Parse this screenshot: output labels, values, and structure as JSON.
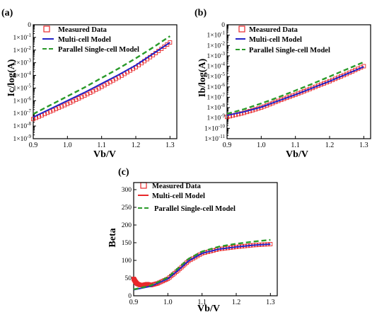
{
  "chart_data": [
    {
      "panel": "(a)",
      "type": "line",
      "xlabel": "Vb/V",
      "ylabel": "Ic/log(A)",
      "xlim": [
        0.9,
        1.32
      ],
      "ylim_log10": [
        -9,
        0
      ],
      "log_y": true,
      "xticks": [
        0.9,
        1.0,
        1.1,
        1.2,
        1.3
      ],
      "xtick_labels": [
        "0.9",
        "1.0",
        "1.1",
        "1.2",
        "1.3"
      ],
      "yticks_log10": [
        0,
        -1,
        -2,
        -3,
        -4,
        -5,
        -6,
        -7,
        -8,
        -9
      ],
      "ytick_labels": [
        {
          "base": "0",
          "exp": ""
        },
        {
          "base": "1×10",
          "exp": "-1"
        },
        {
          "base": "1×10",
          "exp": "-2"
        },
        {
          "base": "1×10",
          "exp": "-3"
        },
        {
          "base": "1×10",
          "exp": "-4"
        },
        {
          "base": "1×10",
          "exp": "-5"
        },
        {
          "base": "1×10",
          "exp": "-6"
        },
        {
          "base": "1×10",
          "exp": "-7"
        },
        {
          "base": "1×10",
          "exp": "-8"
        },
        {
          "base": "1×10",
          "exp": "-9"
        }
      ],
      "legend_position": "top-left",
      "series": [
        {
          "name": "Measured Data",
          "style": "square-marker",
          "color": "#e8282b",
          "x": [
            0.9,
            0.95,
            1.0,
            1.05,
            1.1,
            1.15,
            1.2,
            1.25,
            1.3
          ],
          "y_log10": [
            -7.45,
            -6.85,
            -6.25,
            -5.6,
            -4.9,
            -4.15,
            -3.35,
            -2.4,
            -1.4
          ]
        },
        {
          "name": "Multi-cell Model",
          "style": "solid",
          "color": "#2323c8",
          "x": [
            0.9,
            0.95,
            1.0,
            1.05,
            1.1,
            1.15,
            1.2,
            1.25,
            1.3
          ],
          "y_log10": [
            -7.3,
            -6.65,
            -6.0,
            -5.35,
            -4.65,
            -3.95,
            -3.2,
            -2.3,
            -1.4
          ]
        },
        {
          "name": "Parallel Single-cell Model",
          "style": "dashed",
          "color": "#2a9a2a",
          "x": [
            0.9,
            0.95,
            1.0,
            1.05,
            1.1,
            1.15,
            1.2,
            1.25,
            1.3
          ],
          "y_log10": [
            -7.05,
            -6.35,
            -5.65,
            -4.95,
            -4.2,
            -3.45,
            -2.65,
            -1.8,
            -0.9
          ]
        }
      ]
    },
    {
      "panel": "(b)",
      "type": "line",
      "xlabel": "Vb/V",
      "ylabel": "Ib/log(A)",
      "xlim": [
        0.9,
        1.32
      ],
      "ylim_log10": [
        -11,
        0
      ],
      "log_y": true,
      "xticks": [
        0.9,
        1.0,
        1.1,
        1.2,
        1.3
      ],
      "xtick_labels": [
        "0.9",
        "1.0",
        "1.1",
        "1.2",
        "1.3"
      ],
      "yticks_log10": [
        0,
        -1,
        -2,
        -3,
        -4,
        -5,
        -6,
        -7,
        -8,
        -9,
        -10,
        -11
      ],
      "ytick_labels": [
        {
          "base": "0",
          "exp": ""
        },
        {
          "base": "1×10",
          "exp": "-1"
        },
        {
          "base": "1×10",
          "exp": "-2"
        },
        {
          "base": "1×10",
          "exp": "-3"
        },
        {
          "base": "1×10",
          "exp": "-4"
        },
        {
          "base": "1×10",
          "exp": "-5"
        },
        {
          "base": "1×10",
          "exp": "-6"
        },
        {
          "base": "1×10",
          "exp": "-7"
        },
        {
          "base": "1×10",
          "exp": "-8"
        },
        {
          "base": "1×10",
          "exp": "-9"
        },
        {
          "base": "1×10",
          "exp": "-10"
        },
        {
          "base": "1×10",
          "exp": "-11"
        }
      ],
      "legend_position": "top-left",
      "series": [
        {
          "name": "Measured Data",
          "style": "square-marker",
          "color": "#e8282b",
          "x": [
            0.9,
            0.95,
            1.0,
            1.05,
            1.1,
            1.15,
            1.2,
            1.25,
            1.3
          ],
          "y_log10": [
            -8.9,
            -8.5,
            -8.0,
            -7.35,
            -6.75,
            -6.1,
            -5.45,
            -4.75,
            -4.0
          ]
        },
        {
          "name": "Multi-cell Model",
          "style": "solid",
          "color": "#2323c8",
          "x": [
            0.9,
            0.95,
            1.0,
            1.05,
            1.1,
            1.15,
            1.2,
            1.25,
            1.3
          ],
          "y_log10": [
            -8.75,
            -8.4,
            -7.95,
            -7.35,
            -6.75,
            -6.1,
            -5.45,
            -4.75,
            -4.05
          ]
        },
        {
          "name": "Parallel Single-cell Model",
          "style": "dashed",
          "color": "#2a9a2a",
          "x": [
            0.9,
            0.95,
            1.0,
            1.05,
            1.1,
            1.15,
            1.2,
            1.25,
            1.3
          ],
          "y_log10": [
            -8.6,
            -8.15,
            -7.6,
            -7.0,
            -6.35,
            -5.7,
            -5.0,
            -4.3,
            -3.6
          ]
        }
      ]
    },
    {
      "panel": "(c)",
      "type": "line",
      "xlabel": "Vb/V",
      "ylabel": "Beta",
      "xlim": [
        0.9,
        1.32
      ],
      "ylim": [
        0,
        320
      ],
      "log_y": false,
      "xticks": [
        0.9,
        1.0,
        1.1,
        1.2,
        1.3
      ],
      "xtick_labels": [
        "0.9",
        "1.0",
        "1.1",
        "1.2",
        "1.3"
      ],
      "yticks": [
        0,
        50,
        100,
        150,
        200,
        250,
        300
      ],
      "ytick_labels": [
        "0",
        "50",
        "100",
        "150",
        "200",
        "250",
        "300"
      ],
      "legend_position": "top-left",
      "series": [
        {
          "name": "Measured Data",
          "style": "square-marker",
          "color": "#e8282b",
          "x": [
            0.9,
            0.905,
            0.91,
            0.92,
            0.93,
            0.94,
            0.95,
            0.97,
            1.0,
            1.03,
            1.06,
            1.1,
            1.15,
            1.2,
            1.25,
            1.3
          ],
          "y": [
            48,
            40,
            34,
            30,
            31,
            33,
            30,
            35,
            48,
            72,
            98,
            120,
            132,
            138,
            143,
            146
          ]
        },
        {
          "name": "Multi-cell Model",
          "style": "solid",
          "color": "#2323c8",
          "x": [
            0.9,
            0.95,
            1.0,
            1.03,
            1.06,
            1.1,
            1.15,
            1.2,
            1.25,
            1.3
          ],
          "y": [
            17,
            27,
            48,
            72,
            98,
            120,
            132,
            138,
            143,
            146
          ]
        },
        {
          "name": "Parallel Single-cell Model",
          "style": "dashed",
          "color": "#2a9a2a",
          "x": [
            0.9,
            0.95,
            1.0,
            1.03,
            1.06,
            1.1,
            1.15,
            1.2,
            1.25,
            1.3
          ],
          "y": [
            18,
            29,
            52,
            78,
            104,
            125,
            139,
            147,
            153,
            158
          ]
        }
      ]
    }
  ]
}
